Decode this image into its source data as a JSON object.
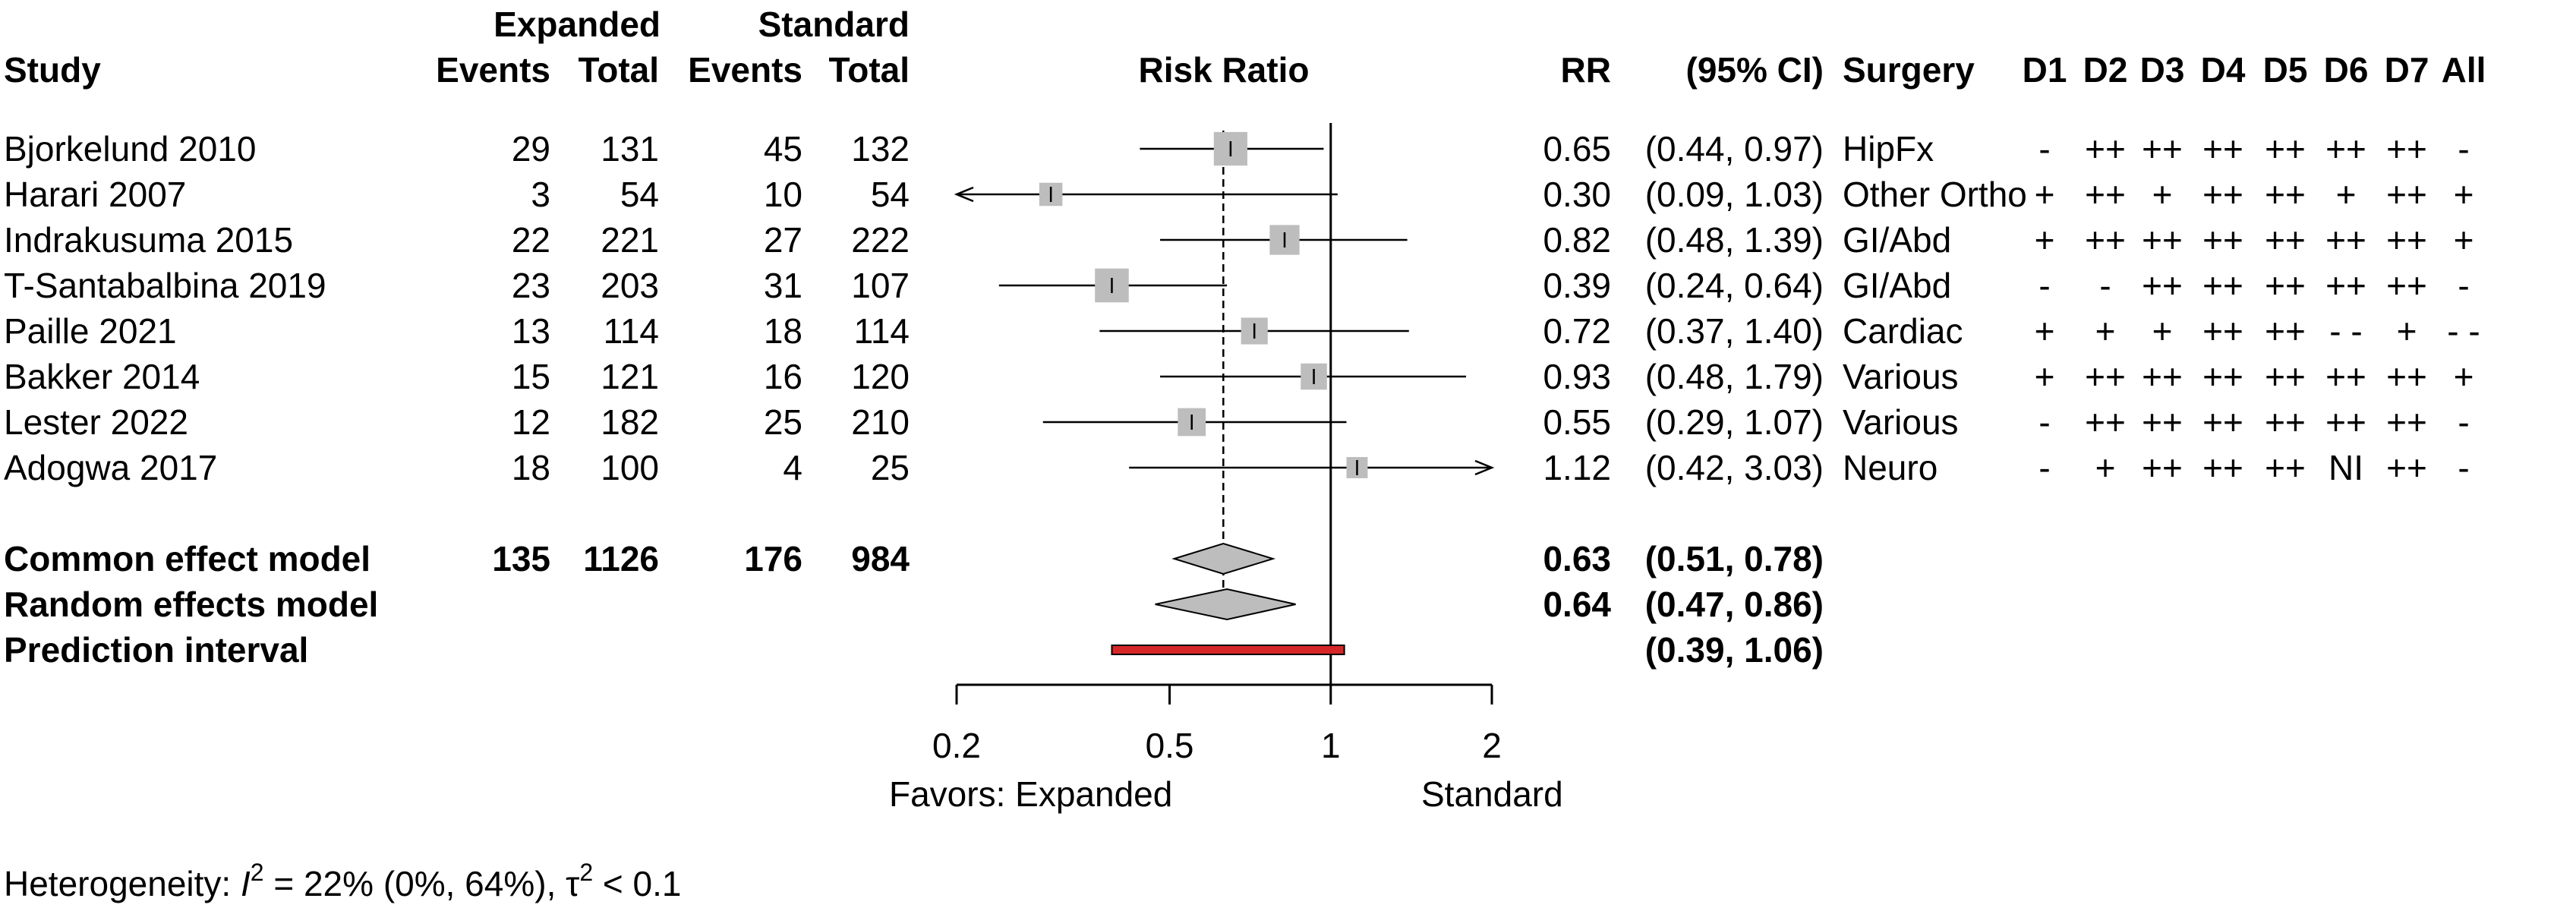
{
  "chart_data": {
    "type": "forest",
    "headers": {
      "study": "Study",
      "expanded_group": "Expanded",
      "standard_group": "Standard",
      "events": "Events",
      "total": "Total",
      "plot_title": "Risk Ratio",
      "rr": "RR",
      "ci": "(95% CI)",
      "surgery": "Surgery",
      "domains": [
        "D1",
        "D2",
        "D3",
        "D4",
        "D5",
        "D6",
        "D7",
        "All"
      ]
    },
    "x_axis": {
      "scale": "log",
      "ticks": [
        0.2,
        0.5,
        1,
        2
      ],
      "tick_labels": [
        "0.2",
        "0.5",
        "1",
        "2"
      ],
      "range": [
        0.2,
        2
      ],
      "null_line": 1,
      "pooled_line": 0.63,
      "label_left": "Favors: Expanded",
      "label_right": "Standard"
    },
    "studies": [
      {
        "name": "Bjorkelund 2010",
        "exp_events": "29",
        "exp_total": "131",
        "std_events": "45",
        "std_total": "132",
        "rr": 0.65,
        "lo": 0.44,
        "hi": 0.97,
        "weight": 3.5,
        "rr_text": "0.65",
        "ci_text": "(0.44, 0.97)",
        "surgery": "HipFx",
        "rob": [
          "-",
          "++",
          "++",
          "++",
          "++",
          "++",
          "++",
          "-"
        ]
      },
      {
        "name": "Harari 2007",
        "exp_events": "3",
        "exp_total": "54",
        "std_events": "10",
        "std_total": "54",
        "rr": 0.3,
        "lo": 0.09,
        "hi": 1.03,
        "weight": 0.8,
        "rr_text": "0.30",
        "ci_text": "(0.09, 1.03)",
        "surgery": "Other Ortho",
        "rob": [
          "+",
          "++",
          "+",
          "++",
          "++",
          "+",
          "++",
          "+"
        ]
      },
      {
        "name": "Indrakusuma 2015",
        "exp_events": "22",
        "exp_total": "221",
        "std_events": "27",
        "std_total": "222",
        "rr": 0.82,
        "lo": 0.48,
        "hi": 1.39,
        "weight": 2.3,
        "rr_text": "0.82",
        "ci_text": "(0.48, 1.39)",
        "surgery": "GI/Abd",
        "rob": [
          "+",
          "++",
          "++",
          "++",
          "++",
          "++",
          "++",
          "+"
        ]
      },
      {
        "name": "T-Santabalbina 2019",
        "exp_events": "23",
        "exp_total": "203",
        "std_events": "31",
        "std_total": "107",
        "rr": 0.39,
        "lo": 0.24,
        "hi": 0.64,
        "weight": 3.6,
        "rr_text": "0.39",
        "ci_text": "(0.24, 0.64)",
        "surgery": "GI/Abd",
        "rob": [
          "-",
          "-",
          "++",
          "++",
          "++",
          "++",
          "++",
          "-"
        ]
      },
      {
        "name": "Paille 2021",
        "exp_events": "13",
        "exp_total": "114",
        "std_events": "18",
        "std_total": "114",
        "rr": 0.72,
        "lo": 0.37,
        "hi": 1.4,
        "weight": 1.5,
        "rr_text": "0.72",
        "ci_text": "(0.37, 1.40)",
        "surgery": "Cardiac",
        "rob": [
          "+",
          "+",
          "+",
          "++",
          "++",
          "- -",
          "+",
          "- -"
        ]
      },
      {
        "name": "Bakker 2014",
        "exp_events": "15",
        "exp_total": "121",
        "std_events": "16",
        "std_total": "120",
        "rr": 0.93,
        "lo": 0.48,
        "hi": 1.79,
        "weight": 1.4,
        "rr_text": "0.93",
        "ci_text": "(0.48, 1.79)",
        "surgery": "Various",
        "rob": [
          "+",
          "++",
          "++",
          "++",
          "++",
          "++",
          "++",
          "+"
        ]
      },
      {
        "name": "Lester 2022",
        "exp_events": "12",
        "exp_total": "182",
        "std_events": "25",
        "std_total": "210",
        "rr": 0.55,
        "lo": 0.29,
        "hi": 1.07,
        "weight": 1.8,
        "rr_text": "0.55",
        "ci_text": "(0.29, 1.07)",
        "surgery": "Various",
        "rob": [
          "-",
          "++",
          "++",
          "++",
          "++",
          "++",
          "++",
          "-"
        ]
      },
      {
        "name": "Adogwa 2017",
        "exp_events": "18",
        "exp_total": "100",
        "std_events": "4",
        "std_total": "25",
        "rr": 1.12,
        "lo": 0.42,
        "hi": 3.03,
        "weight": 0.5,
        "rr_text": "1.12",
        "ci_text": "(0.42, 3.03)",
        "surgery": "Neuro",
        "rob": [
          "-",
          "+",
          "++",
          "++",
          "++",
          "NI",
          "++",
          "-"
        ]
      }
    ],
    "pooled": [
      {
        "name": "Common effect model",
        "exp_events": "135",
        "exp_total": "1126",
        "std_events": "176",
        "std_total": "984",
        "rr": 0.63,
        "lo": 0.51,
        "hi": 0.78,
        "rr_text": "0.63",
        "ci_text": "(0.51, 0.78)"
      },
      {
        "name": "Random effects model",
        "exp_events": "",
        "exp_total": "",
        "std_events": "",
        "std_total": "",
        "rr": 0.64,
        "lo": 0.47,
        "hi": 0.86,
        "rr_text": "0.64",
        "ci_text": "(0.47, 0.86)"
      }
    ],
    "prediction": {
      "name": "Prediction interval",
      "lo": 0.39,
      "hi": 1.06,
      "ci_text": "(0.39, 1.06)",
      "color": "#d62728"
    },
    "heterogeneity": {
      "prefix": "Heterogeneity: ",
      "i2_symbol": "I",
      "i2_text": " = 22% (0%, 64%), ",
      "tau_symbol": "τ",
      "tau_text": " < 0.1"
    },
    "colors": {
      "square": "#bdbdbd",
      "diamond": "#bdbdbd",
      "prediction": "#d62728",
      "line": "#000000"
    }
  }
}
